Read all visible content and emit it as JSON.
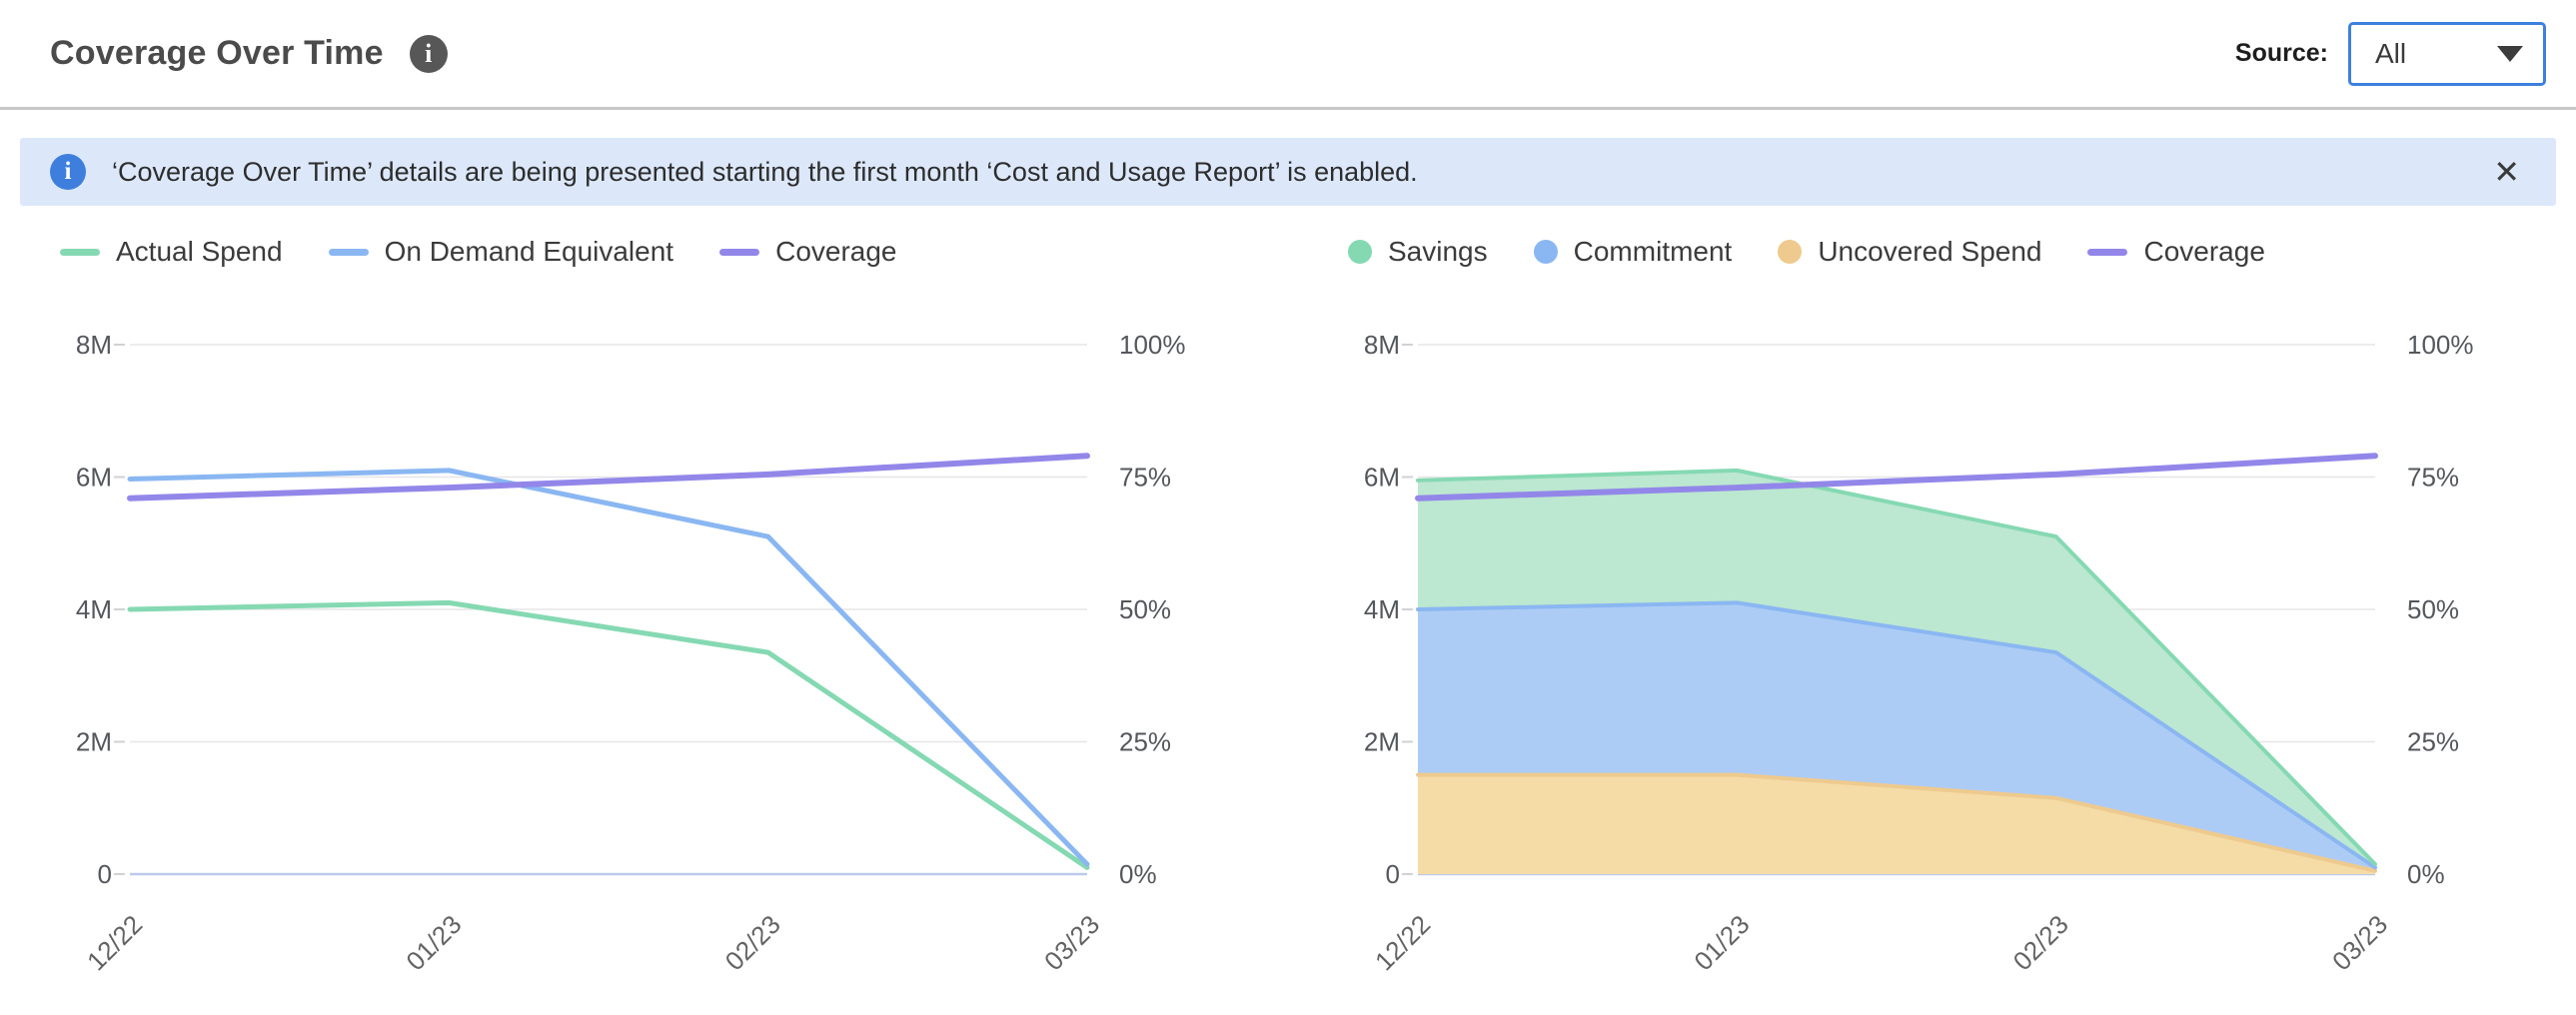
{
  "header": {
    "title": "Coverage Over Time",
    "source_label": "Source:",
    "source_value": "All"
  },
  "icons": {
    "info": "i",
    "close": "✕"
  },
  "banner": {
    "text": "‘Coverage Over Time’ details are being presented starting the first month ‘Cost and Usage Report’ is enabled."
  },
  "colors": {
    "accent_blue": "#3d80de",
    "banner_bg": "#dce8fa",
    "grid": "#e6e6e9",
    "axis_line": "#bdc9e9"
  },
  "chart_data": [
    {
      "type": "line",
      "title": "Spend vs On Demand Equivalent with Coverage",
      "categories": [
        "12/22",
        "01/23",
        "02/23",
        "03/23"
      ],
      "left_axis": {
        "min": 0,
        "max": 8000000,
        "ticks": [
          "8M",
          "6M",
          "4M",
          "2M",
          "0"
        ]
      },
      "right_axis": {
        "min": 0,
        "max": 100,
        "ticks": [
          "100%",
          "75%",
          "50%",
          "25%",
          "0%"
        ]
      },
      "grid": true,
      "legend_position": "top",
      "series": [
        {
          "name": "Actual Spend",
          "marker": "line",
          "axis": "left",
          "color": "#85d9b2",
          "values": [
            4000000,
            4100000,
            3350000,
            100000
          ]
        },
        {
          "name": "On Demand Equivalent",
          "marker": "line",
          "axis": "left",
          "color": "#8ab7f2",
          "values": [
            5970000,
            6100000,
            5100000,
            150000
          ]
        },
        {
          "name": "Coverage",
          "marker": "line",
          "axis": "right",
          "color": "#9287e9",
          "values": [
            71,
            73,
            75.5,
            79
          ]
        }
      ]
    },
    {
      "type": "area",
      "stacked": true,
      "title": "Savings, Commitment and Uncovered Spend with Coverage",
      "categories": [
        "12/22",
        "01/23",
        "02/23",
        "03/23"
      ],
      "left_axis": {
        "min": 0,
        "max": 8000000,
        "ticks": [
          "8M",
          "6M",
          "4M",
          "2M",
          "0"
        ]
      },
      "right_axis": {
        "min": 0,
        "max": 100,
        "ticks": [
          "100%",
          "75%",
          "50%",
          "25%",
          "0%"
        ]
      },
      "grid": true,
      "legend_position": "top",
      "series": [
        {
          "name": "Savings",
          "marker": "circle",
          "axis": "left",
          "stack_index": 2,
          "color": "#85d9b2",
          "fill": "#bce7d1",
          "values": [
            1950000,
            2000000,
            1750000,
            50000
          ]
        },
        {
          "name": "Commitment",
          "marker": "circle",
          "axis": "left",
          "stack_index": 1,
          "color": "#8ab7f2",
          "fill": "#adccf5",
          "values": [
            2500000,
            2600000,
            2200000,
            50000
          ]
        },
        {
          "name": "Uncovered Spend",
          "marker": "circle",
          "axis": "left",
          "stack_index": 0,
          "color": "#eeca8e",
          "fill": "#f5dba6",
          "values": [
            1500000,
            1500000,
            1150000,
            50000
          ]
        },
        {
          "name": "Coverage",
          "marker": "line",
          "axis": "right",
          "color": "#9287e9",
          "values": [
            71,
            73,
            75.5,
            79
          ]
        }
      ]
    }
  ]
}
